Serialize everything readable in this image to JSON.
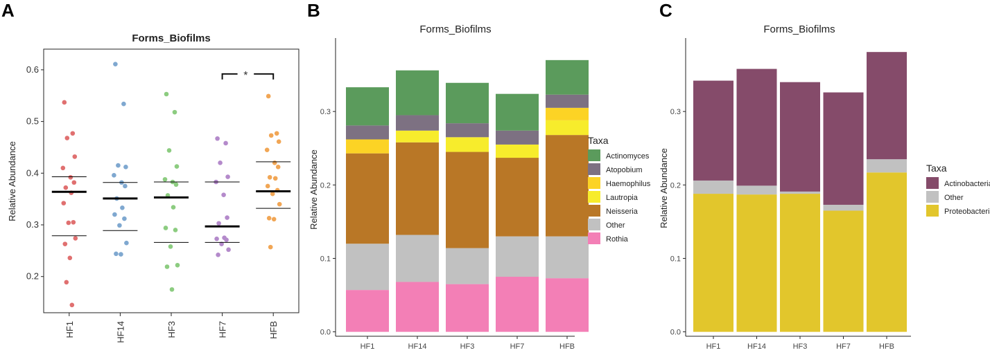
{
  "panels": [
    "A",
    "B",
    "C"
  ],
  "chart_data": [
    {
      "id": "A",
      "type": "scatter",
      "title": "Forms_Biofilms",
      "xlabel": "",
      "ylabel": "Relative Abundance",
      "ylim": [
        0.13,
        0.64
      ],
      "yticks": [
        0.2,
        0.3,
        0.4,
        0.5,
        0.6
      ],
      "ytick_labels": [
        "0.2",
        "0.3",
        "0.4",
        "0.5",
        "0.6"
      ],
      "categories": [
        "HF1",
        "HF14",
        "HF3",
        "HF7",
        "HFB"
      ],
      "colors": [
        "#e07070",
        "#7fa8d0",
        "#8ccc80",
        "#b48acb",
        "#f1a655"
      ],
      "points": [
        [
          0.537,
          0.477,
          0.468,
          0.432,
          0.41,
          0.392,
          0.382,
          0.372,
          0.362,
          0.342,
          0.305,
          0.304,
          0.274,
          0.263,
          0.236,
          0.189,
          0.145
        ],
        [
          0.611,
          0.534,
          0.415,
          0.412,
          0.396,
          0.382,
          0.375,
          0.351,
          0.333,
          0.32,
          0.312,
          0.299,
          0.265,
          0.244,
          0.243
        ],
        [
          0.553,
          0.518,
          0.444,
          0.413,
          0.388,
          0.383,
          0.378,
          0.357,
          0.334,
          0.294,
          0.29,
          0.258,
          0.222,
          0.219,
          0.175
        ],
        [
          0.467,
          0.458,
          0.42,
          0.393,
          0.383,
          0.358,
          0.314,
          0.303,
          0.275,
          0.273,
          0.271,
          0.263,
          0.252,
          0.242
        ],
        [
          0.549,
          0.477,
          0.473,
          0.461,
          0.445,
          0.42,
          0.412,
          0.392,
          0.39,
          0.375,
          0.367,
          0.36,
          0.34,
          0.313,
          0.311,
          0.257
        ]
      ],
      "mean": [
        0.364,
        0.351,
        0.353,
        0.297,
        0.365
      ],
      "upper": [
        0.393,
        0.382,
        0.383,
        0.383,
        0.422
      ],
      "lower": [
        0.279,
        0.289,
        0.266,
        0.266,
        0.332
      ],
      "significance": {
        "from": "HF7",
        "to": "HFB",
        "y": 0.592,
        "label": "*"
      }
    },
    {
      "id": "B",
      "type": "bar",
      "stacked": true,
      "title": "Forms_Biofilms",
      "xlabel": "",
      "ylabel": "Relative Abundance",
      "ylim": [
        -0.006,
        0.4
      ],
      "yticks": [
        0.0,
        0.1,
        0.2,
        0.3
      ],
      "ytick_labels": [
        "0.0",
        "0.1",
        "0.2",
        "0.3"
      ],
      "categories": [
        "HF1",
        "HF14",
        "HF3",
        "HF7",
        "HFB"
      ],
      "legend_title": "Taxa",
      "legend_position": "right",
      "series": [
        {
          "name": "Rothia",
          "color": "#f37fb6",
          "values": [
            0.057,
            0.068,
            0.065,
            0.075,
            0.073
          ]
        },
        {
          "name": "Other",
          "color": "#c1c1c1",
          "values": [
            0.063,
            0.064,
            0.049,
            0.055,
            0.057
          ]
        },
        {
          "name": "Neisseria",
          "color": "#b97726",
          "values": [
            0.123,
            0.126,
            0.131,
            0.107,
            0.138
          ]
        },
        {
          "name": "Lautropia",
          "color": "#f7ec2c",
          "values": [
            0.0,
            0.016,
            0.02,
            0.018,
            0.02
          ]
        },
        {
          "name": "Haemophilus",
          "color": "#fcd325",
          "values": [
            0.019,
            0.0,
            0.0,
            0.0,
            0.017
          ]
        },
        {
          "name": "Atopobium",
          "color": "#7d7182",
          "values": [
            0.019,
            0.021,
            0.019,
            0.019,
            0.018
          ]
        },
        {
          "name": "Actinomyces",
          "color": "#5b9b5c",
          "values": [
            0.052,
            0.061,
            0.055,
            0.05,
            0.047
          ]
        }
      ],
      "legend_order": [
        "Actinomyces",
        "Atopobium",
        "Haemophilus",
        "Lautropia",
        "Neisseria",
        "Other",
        "Rothia"
      ]
    },
    {
      "id": "C",
      "type": "bar",
      "stacked": true,
      "title": "Forms_Biofilms",
      "xlabel": "",
      "ylabel": "Relative Abundance",
      "ylim": [
        -0.006,
        0.4
      ],
      "yticks": [
        0.0,
        0.1,
        0.2,
        0.3
      ],
      "ytick_labels": [
        "0.0",
        "0.1",
        "0.2",
        "0.3"
      ],
      "categories": [
        "HF1",
        "HF14",
        "HF3",
        "HF7",
        "HFB"
      ],
      "legend_title": "Taxa",
      "legend_position": "right",
      "series": [
        {
          "name": "Proteobacteria",
          "color": "#e2c62c",
          "values": [
            0.188,
            0.187,
            0.188,
            0.165,
            0.217
          ]
        },
        {
          "name": "Other",
          "color": "#c1c1c1",
          "values": [
            0.018,
            0.012,
            0.003,
            0.008,
            0.018
          ]
        },
        {
          "name": "Actinobacteria",
          "color": "#854b6a",
          "values": [
            0.136,
            0.159,
            0.149,
            0.153,
            0.146
          ]
        }
      ],
      "legend_order": [
        "Actinobacteria",
        "Other",
        "Proteobacteria"
      ]
    }
  ]
}
